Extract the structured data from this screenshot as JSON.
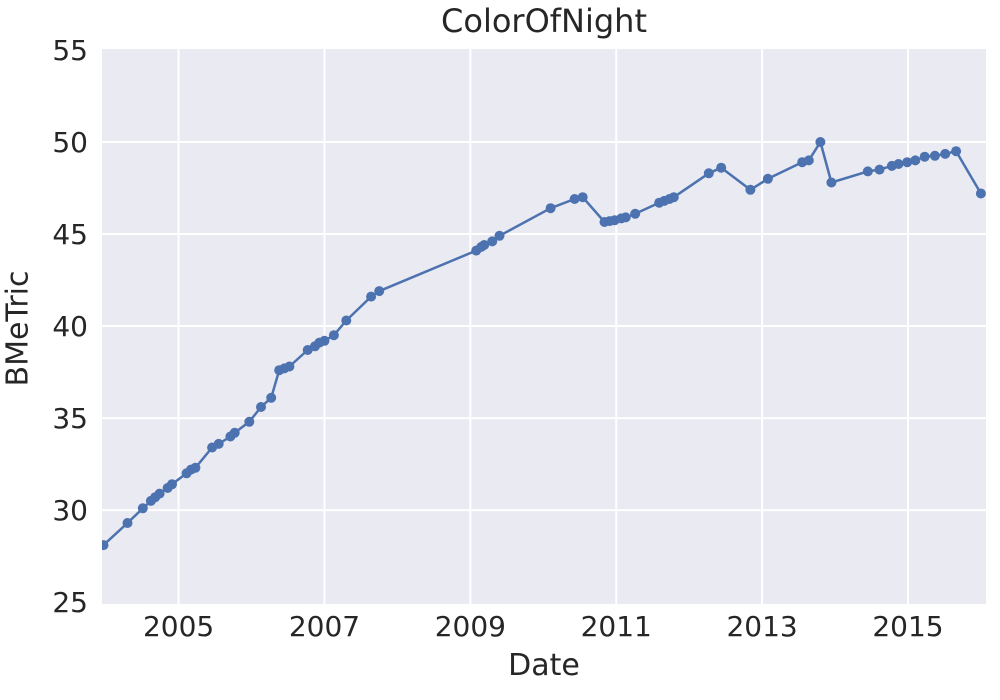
{
  "chart_data": {
    "type": "line",
    "title": "ColorOfNight",
    "xlabel": "Date",
    "ylabel": "BMeTric",
    "x_ticks": [
      2005,
      2007,
      2009,
      2011,
      2013,
      2015
    ],
    "y_ticks": [
      25,
      30,
      35,
      40,
      45,
      50,
      55
    ],
    "xlim": [
      2003.95,
      2016.07
    ],
    "ylim": [
      24.9,
      55.05
    ],
    "grid": true,
    "legend": "none",
    "plot_bg_color": "#EAEAF2",
    "grid_color": "#FFFFFF",
    "line_color": "#4C72B0",
    "marker": "o",
    "text_color": "#262626",
    "series": [
      {
        "name": "BMeTric",
        "points": [
          [
            2003.97,
            28.1
          ],
          [
            2004.3,
            29.3
          ],
          [
            2004.51,
            30.1
          ],
          [
            2004.62,
            30.5
          ],
          [
            2004.68,
            30.7
          ],
          [
            2004.74,
            30.9
          ],
          [
            2004.85,
            31.2
          ],
          [
            2004.91,
            31.4
          ],
          [
            2005.11,
            32.0
          ],
          [
            2005.17,
            32.2
          ],
          [
            2005.23,
            32.3
          ],
          [
            2005.46,
            33.4
          ],
          [
            2005.55,
            33.6
          ],
          [
            2005.71,
            34.0
          ],
          [
            2005.77,
            34.2
          ],
          [
            2005.97,
            34.8
          ],
          [
            2006.13,
            35.6
          ],
          [
            2006.27,
            36.1
          ],
          [
            2006.38,
            37.6
          ],
          [
            2006.45,
            37.7
          ],
          [
            2006.52,
            37.8
          ],
          [
            2006.77,
            38.7
          ],
          [
            2006.87,
            38.9
          ],
          [
            2006.93,
            39.1
          ],
          [
            2007.0,
            39.2
          ],
          [
            2007.13,
            39.5
          ],
          [
            2007.3,
            40.3
          ],
          [
            2007.64,
            41.6
          ],
          [
            2007.75,
            41.9
          ],
          [
            2009.08,
            44.1
          ],
          [
            2009.15,
            44.3
          ],
          [
            2009.19,
            44.4
          ],
          [
            2009.3,
            44.6
          ],
          [
            2009.4,
            44.9
          ],
          [
            2010.1,
            46.4
          ],
          [
            2010.43,
            46.9
          ],
          [
            2010.54,
            47.0
          ],
          [
            2010.84,
            45.65
          ],
          [
            2010.91,
            45.7
          ],
          [
            2010.98,
            45.75
          ],
          [
            2011.07,
            45.85
          ],
          [
            2011.13,
            45.9
          ],
          [
            2011.26,
            46.1
          ],
          [
            2011.59,
            46.7
          ],
          [
            2011.66,
            46.8
          ],
          [
            2011.73,
            46.9
          ],
          [
            2011.79,
            47.0
          ],
          [
            2012.27,
            48.3
          ],
          [
            2012.44,
            48.6
          ],
          [
            2012.84,
            47.4
          ],
          [
            2013.08,
            48.0
          ],
          [
            2013.55,
            48.9
          ],
          [
            2013.64,
            49.0
          ],
          [
            2013.8,
            50.0
          ],
          [
            2013.95,
            47.8
          ],
          [
            2014.45,
            48.4
          ],
          [
            2014.61,
            48.5
          ],
          [
            2014.78,
            48.7
          ],
          [
            2014.87,
            48.8
          ],
          [
            2014.99,
            48.9
          ],
          [
            2015.1,
            49.0
          ],
          [
            2015.23,
            49.2
          ],
          [
            2015.37,
            49.25
          ],
          [
            2015.51,
            49.35
          ],
          [
            2015.66,
            49.5
          ],
          [
            2016.0,
            47.2
          ]
        ]
      }
    ]
  }
}
